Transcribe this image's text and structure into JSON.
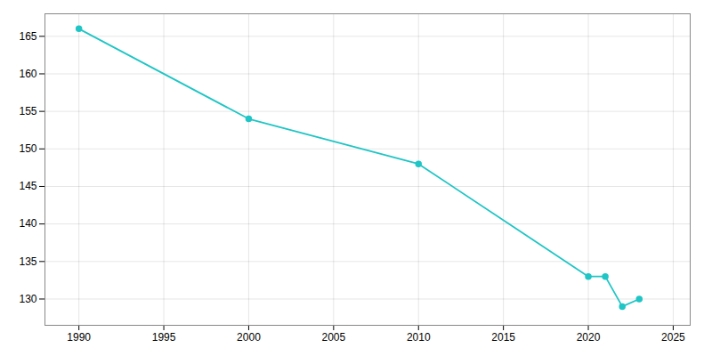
{
  "chart_data": {
    "type": "line",
    "x": [
      1990,
      2000,
      2010,
      2020,
      2021,
      2022,
      2023
    ],
    "values": [
      166,
      154,
      148,
      133,
      133,
      129,
      130
    ],
    "color": "#20c5c5",
    "marker": "circle",
    "line_style": "solid",
    "xlim": [
      1988,
      2026
    ],
    "ylim": [
      126.5,
      168
    ],
    "xticks": [
      1990,
      1995,
      2000,
      2005,
      2010,
      2015,
      2020,
      2025
    ],
    "yticks": [
      130,
      135,
      140,
      145,
      150,
      155,
      160,
      165
    ],
    "grid": true
  }
}
